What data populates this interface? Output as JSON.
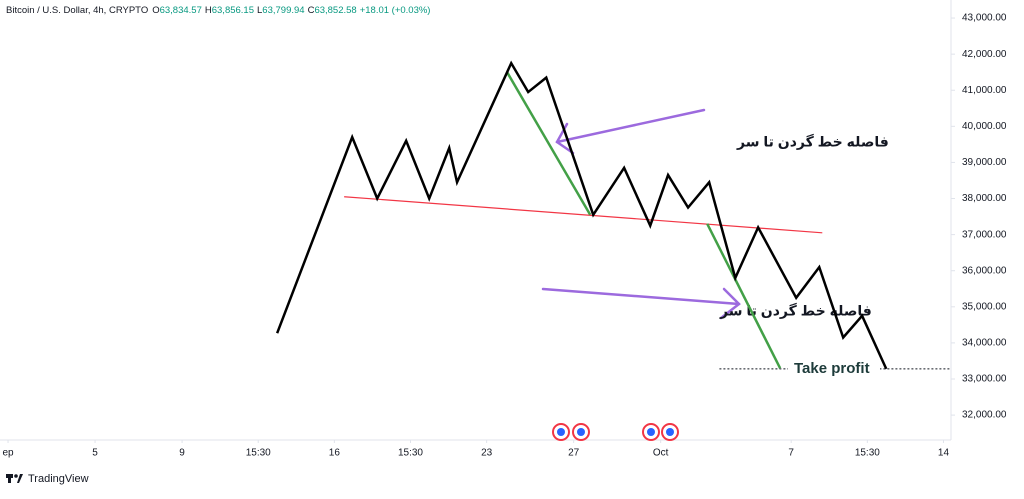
{
  "chart_data": {
    "type": "line",
    "title": "Bitcoin / U.S. Dollar, 4h, CRYPTO",
    "ohlc": [
      {
        "label": "O",
        "value": "63,834.57"
      },
      {
        "label": "H",
        "value": "63,856.15"
      },
      {
        "label": "L",
        "value": "63,799.94"
      },
      {
        "label": "C",
        "value": "63,852.58"
      }
    ],
    "change": "+18.01 (+0.03%)",
    "brand": "TradingView",
    "grid": false,
    "xlim": [
      -0.37,
      43.3
    ],
    "xticks": [
      {
        "value": 0,
        "label": "ep"
      },
      {
        "value": 4,
        "label": "5"
      },
      {
        "value": 8,
        "label": "9"
      },
      {
        "value": 11.5,
        "label": "15:30"
      },
      {
        "value": 15,
        "label": "16"
      },
      {
        "value": 18.5,
        "label": "15:30"
      },
      {
        "value": 22,
        "label": "23"
      },
      {
        "value": 26,
        "label": "27"
      },
      {
        "value": 30,
        "label": "Oct"
      },
      {
        "value": 36,
        "label": "7"
      },
      {
        "value": 39.5,
        "label": "15:30"
      },
      {
        "value": 43,
        "label": "14"
      }
    ],
    "ylim": [
      31310,
      43500
    ],
    "yticks": [
      {
        "value": 32000,
        "label": "32,000.00"
      },
      {
        "value": 33000,
        "label": "33,000.00"
      },
      {
        "value": 34000,
        "label": "34,000.00"
      },
      {
        "value": 35000,
        "label": "35,000.00"
      },
      {
        "value": 36000,
        "label": "36,000.00"
      },
      {
        "value": 37000,
        "label": "37,000.00"
      },
      {
        "value": 38000,
        "label": "38,000.00"
      },
      {
        "value": 39000,
        "label": "39,000.00"
      },
      {
        "value": 40000,
        "label": "40,000.00"
      },
      {
        "value": 41000,
        "label": "41,000.00"
      },
      {
        "value": 42000,
        "label": "42,000.00"
      },
      {
        "value": 43000,
        "label": "43,000.00"
      }
    ],
    "series": [
      {
        "color": "#000000",
        "x": [
          12.37,
          15.82,
          16.97,
          18.3,
          19.36,
          20.28,
          20.64,
          23.13,
          23.91,
          24.74,
          26.9,
          28.32,
          29.52,
          30.34,
          31.26,
          32.23,
          33.43,
          34.48,
          36.23,
          37.29,
          38.39,
          39.26,
          40.37
        ],
        "values": [
          34270,
          39700,
          38000,
          39600,
          38000,
          39400,
          38450,
          41750,
          40950,
          41350,
          37550,
          38850,
          37250,
          38650,
          37750,
          38450,
          35800,
          37200,
          35250,
          36100,
          34150,
          34750,
          33280
        ]
      }
    ],
    "drawings": [
      {
        "color": "#f23645",
        "x": [
          15.45,
          37.43
        ],
        "values": [
          38050,
          37050
        ]
      },
      {
        "color": "#43a047",
        "x": [
          22.94,
          26.76
        ],
        "values": [
          41500,
          37550
        ]
      },
      {
        "color": "#43a047",
        "x": [
          32.14,
          35.49
        ],
        "values": [
          37300,
          33300
        ]
      }
    ],
    "take_profit": {
      "x": [
        32.7,
        43.3
      ],
      "value": 33280,
      "label": "Take profit"
    },
    "annotations": [
      "فاصله خط گردن تا سر",
      "فاصله خط گردن تا سر"
    ]
  }
}
